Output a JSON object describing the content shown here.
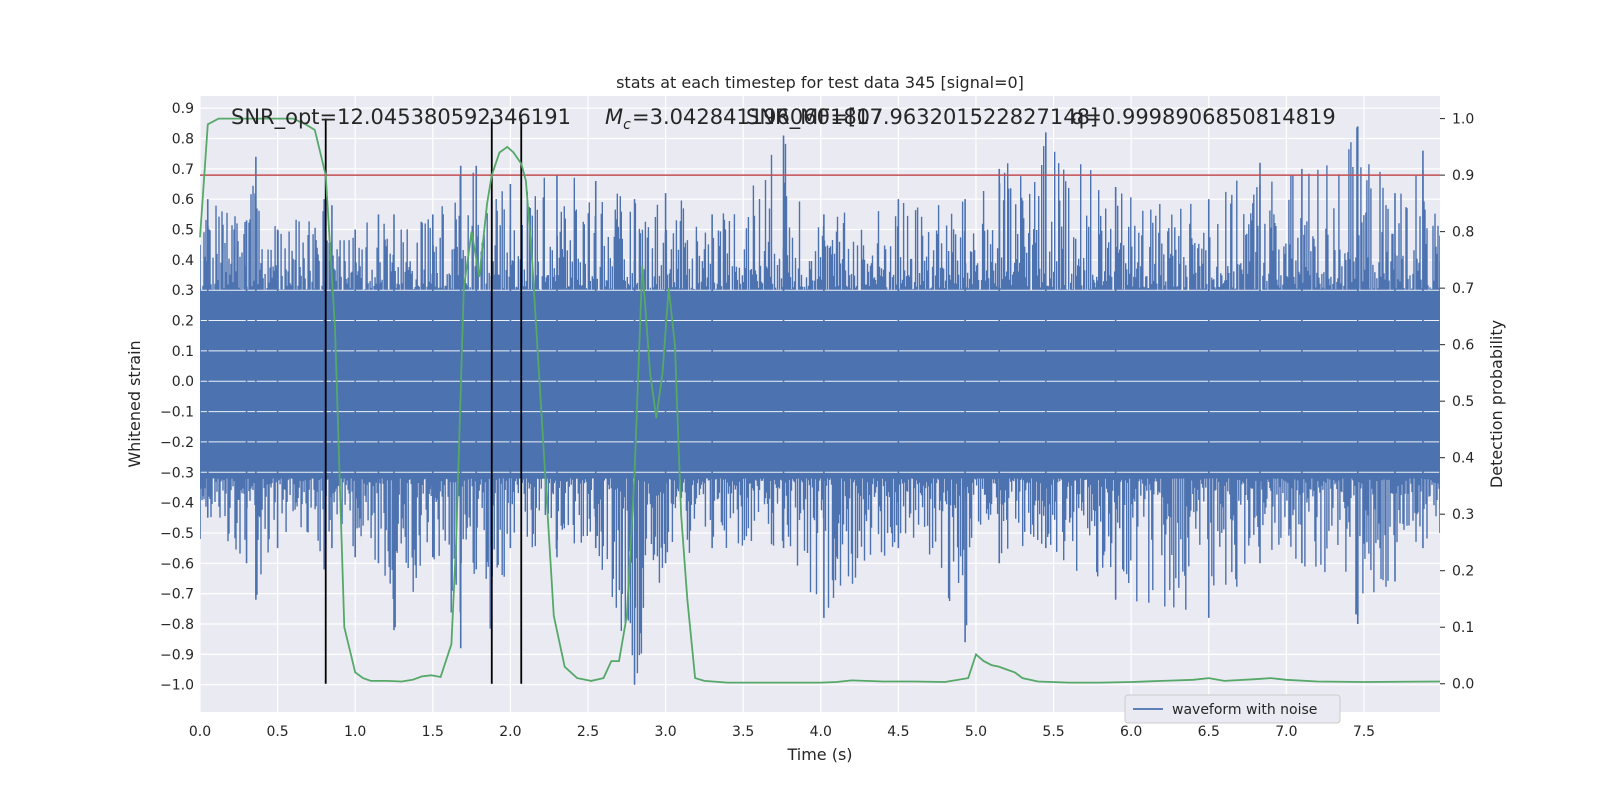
{
  "chart_data": {
    "type": "line",
    "title": "stats at each timestep for test data 345 [signal=0]",
    "xlabel": "Time (s)",
    "ylabel_left": "Whitened strain",
    "ylabel_right": "Detection probability",
    "xlim": [
      0,
      7.99
    ],
    "ylim_left": [
      -1.09,
      0.94
    ],
    "ylim_right": [
      -0.05,
      1.04
    ],
    "x_ticks": [
      "0.0",
      "0.5",
      "1.0",
      "1.5",
      "2.0",
      "2.5",
      "3.0",
      "3.5",
      "4.0",
      "4.5",
      "5.0",
      "5.5",
      "6.0",
      "6.5",
      "7.0",
      "7.5"
    ],
    "y_ticks_left": [
      "0.9",
      "0.8",
      "0.7",
      "0.6",
      "0.5",
      "0.4",
      "0.3",
      "0.2",
      "0.1",
      "0.0",
      "-0.1",
      "-0.2",
      "-0.3",
      "-0.4",
      "-0.5",
      "-0.6",
      "-0.7",
      "-0.8",
      "-0.9",
      "-1.0"
    ],
    "y_ticks_right": [
      "1.0",
      "0.9",
      "0.8",
      "0.7",
      "0.6",
      "0.5",
      "0.4",
      "0.3",
      "0.2",
      "0.1",
      "0.0"
    ],
    "grid": true,
    "legend_position": "lower-right",
    "annotations": {
      "snr_opt": "SNR_opt=12.045380592346191",
      "mc_label": "=3.0428411960601807",
      "snr_mf": "SNR_MF=[17.963201522827148]",
      "q": "q=0.9998906850814819"
    },
    "threshold": 0.9,
    "vertical_lines_x": [
      0.81,
      1.88,
      2.07
    ],
    "series": [
      {
        "name": "waveform with noise",
        "color": "#4c72b0",
        "note_envelope": [
          [
            0.0,
            0.45,
            -0.52
          ],
          [
            0.05,
            0.6,
            -0.45
          ],
          [
            0.3,
            0.53,
            -0.6
          ],
          [
            0.36,
            0.74,
            -0.72
          ],
          [
            0.5,
            0.5,
            -0.55
          ],
          [
            0.8,
            0.6,
            -0.62
          ],
          [
            0.85,
            0.58,
            -0.55
          ],
          [
            1.0,
            0.5,
            -0.58
          ],
          [
            1.15,
            0.55,
            -0.6
          ],
          [
            1.25,
            0.55,
            -0.82
          ],
          [
            1.5,
            0.55,
            -0.58
          ],
          [
            1.68,
            0.71,
            -0.88
          ],
          [
            1.78,
            0.71,
            -0.62
          ],
          [
            1.88,
            0.6,
            -0.85
          ],
          [
            2.0,
            0.65,
            -0.55
          ],
          [
            2.3,
            0.68,
            -0.58
          ],
          [
            2.55,
            0.66,
            -0.55
          ],
          [
            2.8,
            0.6,
            -1.0
          ],
          [
            3.0,
            0.62,
            -0.6
          ],
          [
            3.3,
            0.55,
            -0.55
          ],
          [
            3.76,
            0.81,
            -0.55
          ],
          [
            4.02,
            0.55,
            -0.78
          ],
          [
            4.5,
            0.6,
            -0.55
          ],
          [
            4.93,
            0.6,
            -0.86
          ],
          [
            5.15,
            0.7,
            -0.6
          ],
          [
            5.45,
            0.82,
            -0.55
          ],
          [
            5.9,
            0.64,
            -0.72
          ],
          [
            6.5,
            0.6,
            -0.78
          ],
          [
            6.83,
            0.72,
            -0.6
          ],
          [
            7.1,
            0.7,
            -0.6
          ],
          [
            7.46,
            0.84,
            -0.8
          ],
          [
            7.7,
            0.62,
            -0.66
          ],
          [
            7.88,
            0.76,
            -0.55
          ],
          [
            7.99,
            0.48,
            -0.5
          ]
        ]
      },
      {
        "name": "detection probability",
        "color": "#55a868",
        "axis": "right",
        "x": [
          0.0,
          0.05,
          0.12,
          0.2,
          0.3,
          0.4,
          0.5,
          0.6,
          0.68,
          0.74,
          0.81,
          0.87,
          0.93,
          1.0,
          1.05,
          1.1,
          1.2,
          1.3,
          1.37,
          1.43,
          1.49,
          1.55,
          1.62,
          1.65,
          1.7,
          1.75,
          1.8,
          1.85,
          1.88,
          1.93,
          1.98,
          2.02,
          2.07,
          2.1,
          2.14,
          2.2,
          2.28,
          2.35,
          2.43,
          2.52,
          2.6,
          2.65,
          2.7,
          2.75,
          2.8,
          2.85,
          2.9,
          2.94,
          2.98,
          3.02,
          3.06,
          3.1,
          3.14,
          3.19,
          3.25,
          3.4,
          3.6,
          3.8,
          4.0,
          4.1,
          4.2,
          4.4,
          4.6,
          4.8,
          4.95,
          5.0,
          5.05,
          5.1,
          5.15,
          5.2,
          5.25,
          5.3,
          5.4,
          5.6,
          5.8,
          6.0,
          6.2,
          6.4,
          6.5,
          6.6,
          6.8,
          6.9,
          7.0,
          7.2,
          7.5,
          7.99
        ],
        "y": [
          0.79,
          0.99,
          1.0,
          1.0,
          1.0,
          1.0,
          1.0,
          1.0,
          0.99,
          0.98,
          0.9,
          0.63,
          0.1,
          0.02,
          0.01,
          0.005,
          0.005,
          0.004,
          0.007,
          0.013,
          0.015,
          0.012,
          0.07,
          0.25,
          0.7,
          0.8,
          0.72,
          0.85,
          0.9,
          0.94,
          0.95,
          0.94,
          0.92,
          0.89,
          0.75,
          0.48,
          0.12,
          0.03,
          0.01,
          0.005,
          0.01,
          0.04,
          0.04,
          0.12,
          0.37,
          0.74,
          0.55,
          0.47,
          0.55,
          0.7,
          0.6,
          0.3,
          0.15,
          0.01,
          0.005,
          0.002,
          0.002,
          0.002,
          0.002,
          0.003,
          0.006,
          0.004,
          0.004,
          0.003,
          0.01,
          0.052,
          0.04,
          0.033,
          0.03,
          0.025,
          0.02,
          0.01,
          0.004,
          0.002,
          0.002,
          0.003,
          0.005,
          0.007,
          0.01,
          0.005,
          0.008,
          0.01,
          0.007,
          0.004,
          0.003,
          0.004
        ]
      }
    ]
  }
}
